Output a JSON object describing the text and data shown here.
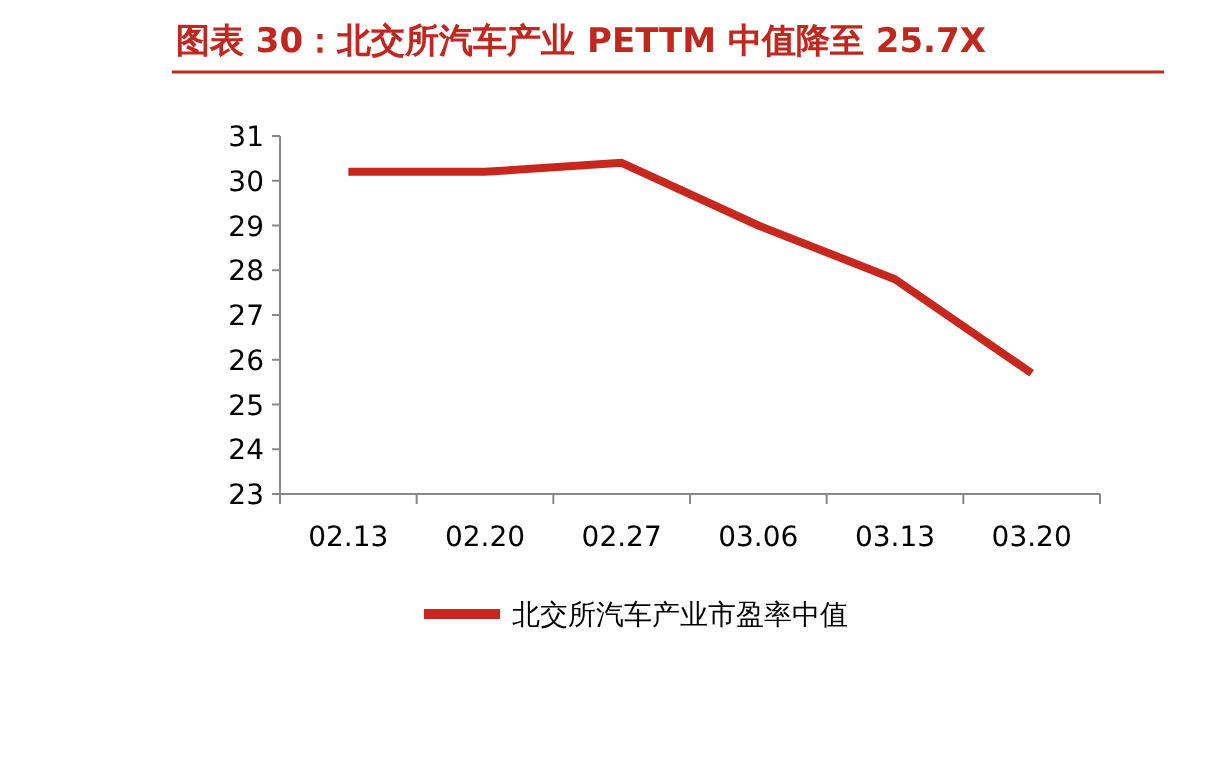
{
  "chart_data": {
    "type": "line",
    "title": "图表 30：北交所汽车产业 PETTM 中值降至 25.7X",
    "categories": [
      "02.13",
      "02.20",
      "02.27",
      "03.06",
      "03.13",
      "03.20"
    ],
    "series": [
      {
        "name": "北交所汽车产业市盈率中值",
        "color": "#c8271e",
        "values": [
          30.2,
          30.2,
          30.4,
          29.0,
          27.8,
          25.7
        ]
      }
    ],
    "ylim": [
      23,
      31
    ],
    "yticks": [
      23,
      24,
      25,
      26,
      27,
      28,
      29,
      30,
      31
    ],
    "grid": false,
    "legend": "bottom",
    "marker": "none",
    "line_style": "solid"
  }
}
